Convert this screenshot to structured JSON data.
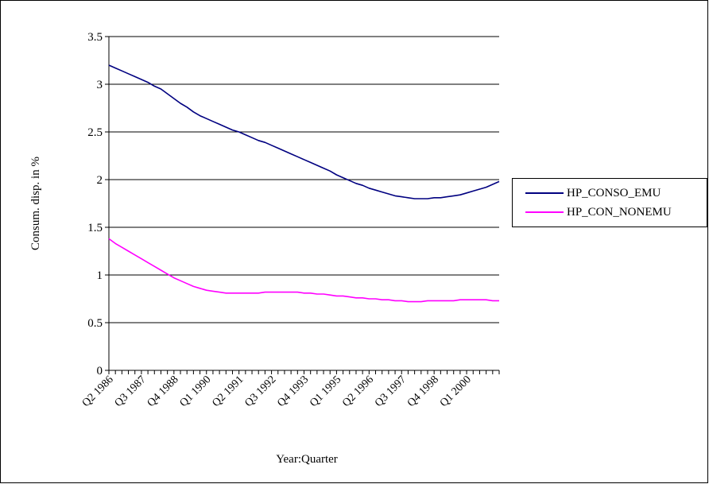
{
  "chart_data": {
    "type": "line",
    "title": "",
    "xlabel": "Year:Quarter",
    "ylabel": "Consum. disp. in %",
    "ylim": [
      0,
      3.5
    ],
    "yticks": [
      0,
      0.5,
      1,
      1.5,
      2,
      2.5,
      3,
      3.5
    ],
    "y_tick_labels": [
      "0",
      "0.5",
      "1",
      "1.5",
      "2",
      "2.5",
      "3",
      "3.5"
    ],
    "grid": true,
    "legend_position": "right",
    "x_tick_labels": [
      {
        "index": 0,
        "label": "Q2 1986"
      },
      {
        "index": 5,
        "label": "Q3 1987"
      },
      {
        "index": 10,
        "label": "Q4 1988"
      },
      {
        "index": 15,
        "label": "Q1 1990"
      },
      {
        "index": 20,
        "label": "Q2 1991"
      },
      {
        "index": 25,
        "label": "Q3 1992"
      },
      {
        "index": 30,
        "label": "Q4 1993"
      },
      {
        "index": 35,
        "label": "Q1 1995"
      },
      {
        "index": 40,
        "label": "Q2 1996"
      },
      {
        "index": 45,
        "label": "Q3 1997"
      },
      {
        "index": 50,
        "label": "Q4 1998"
      },
      {
        "index": 55,
        "label": "Q1 2000"
      }
    ],
    "n_points": 61,
    "series": [
      {
        "name": "HP_CONSO_EMU",
        "color": "#000080",
        "values": [
          3.2,
          3.17,
          3.14,
          3.11,
          3.08,
          3.05,
          3.02,
          2.98,
          2.95,
          2.9,
          2.85,
          2.8,
          2.76,
          2.71,
          2.67,
          2.64,
          2.61,
          2.58,
          2.55,
          2.52,
          2.5,
          2.47,
          2.44,
          2.41,
          2.39,
          2.36,
          2.33,
          2.3,
          2.27,
          2.24,
          2.21,
          2.18,
          2.15,
          2.12,
          2.09,
          2.05,
          2.02,
          1.99,
          1.96,
          1.94,
          1.91,
          1.89,
          1.87,
          1.85,
          1.83,
          1.82,
          1.81,
          1.8,
          1.8,
          1.8,
          1.81,
          1.81,
          1.82,
          1.83,
          1.84,
          1.86,
          1.88,
          1.9,
          1.92,
          1.95,
          1.98
        ]
      },
      {
        "name": "HP_CON_NONEMU",
        "color": "#ff00ff",
        "values": [
          1.38,
          1.33,
          1.29,
          1.25,
          1.21,
          1.17,
          1.13,
          1.09,
          1.05,
          1.01,
          0.97,
          0.94,
          0.91,
          0.88,
          0.86,
          0.84,
          0.83,
          0.82,
          0.81,
          0.81,
          0.81,
          0.81,
          0.81,
          0.81,
          0.82,
          0.82,
          0.82,
          0.82,
          0.82,
          0.82,
          0.81,
          0.81,
          0.8,
          0.8,
          0.79,
          0.78,
          0.78,
          0.77,
          0.76,
          0.76,
          0.75,
          0.75,
          0.74,
          0.74,
          0.73,
          0.73,
          0.72,
          0.72,
          0.72,
          0.73,
          0.73,
          0.73,
          0.73,
          0.73,
          0.74,
          0.74,
          0.74,
          0.74,
          0.74,
          0.73,
          0.73
        ]
      }
    ]
  }
}
